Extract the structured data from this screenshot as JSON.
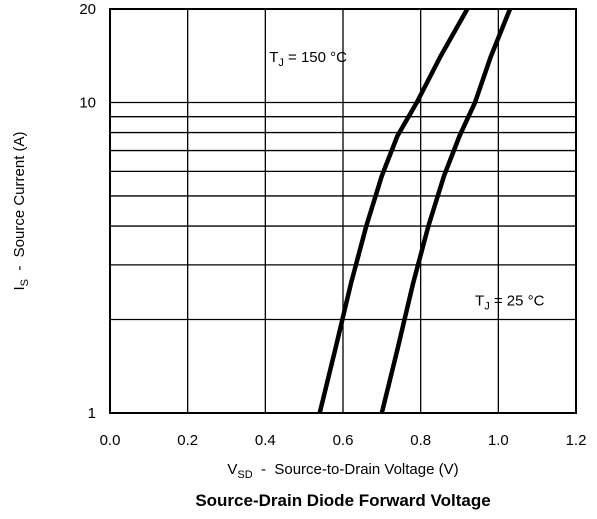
{
  "chart_data": {
    "type": "line",
    "title": "Source-Drain Diode Forward Voltage",
    "xlabel": {
      "main": "V",
      "sub": "SD",
      "rest": "  -  Source-to-Drain Voltage (V)"
    },
    "ylabel": {
      "main": "I",
      "sub": "S",
      "rest": "  -  Source Current (A)"
    },
    "xlim": [
      0.0,
      1.2
    ],
    "ylim": [
      1,
      20
    ],
    "yscale": "log",
    "grid": true,
    "x_ticks": [
      "0.0",
      "0.2",
      "0.4",
      "0.6",
      "0.8",
      "1.0",
      "1.2"
    ],
    "y_ticks": [
      "1",
      "10",
      "20"
    ],
    "series": [
      {
        "name": "TJ = 150 °C",
        "label": {
          "main": "T",
          "sub": "J",
          "rest": " = 150  °C"
        },
        "x": [
          0.54,
          0.58,
          0.62,
          0.66,
          0.7,
          0.74,
          0.79,
          0.85,
          0.92
        ],
        "y": [
          1.0,
          1.6,
          2.6,
          4.0,
          5.8,
          7.8,
          10.0,
          14.0,
          20.0
        ]
      },
      {
        "name": "TJ = 25 °C",
        "label": {
          "main": "T",
          "sub": "J",
          "rest": " = 25  °C"
        },
        "x": [
          0.7,
          0.74,
          0.78,
          0.82,
          0.86,
          0.9,
          0.94,
          0.98,
          1.03
        ],
        "y": [
          1.0,
          1.6,
          2.6,
          4.0,
          5.8,
          7.8,
          10.0,
          14.0,
          20.0
        ]
      }
    ]
  }
}
